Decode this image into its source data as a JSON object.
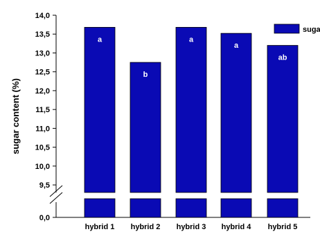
{
  "chart_data": {
    "type": "bar",
    "title": "",
    "xlabel": "",
    "ylabel": "sugar content (%)",
    "categories": [
      "hybrid 1",
      "hybrid 2",
      "hybrid 3",
      "hybrid 4",
      "hybrid 5"
    ],
    "series": [
      {
        "name": "sugar",
        "values": [
          13.68,
          12.75,
          13.68,
          13.52,
          13.2
        ],
        "labels": [
          "a",
          "b",
          "a",
          "a",
          "ab"
        ],
        "color": "#0a0ab4"
      }
    ],
    "ylim": [
      9.3,
      14.0
    ],
    "y_ticks": [
      "9,5",
      "10,0",
      "10,5",
      "11,0",
      "11,5",
      "12,0",
      "12,5",
      "13,0",
      "13,5",
      "14,0"
    ],
    "y_tick_values": [
      9.5,
      10.0,
      10.5,
      11.0,
      11.5,
      12.0,
      12.5,
      13.0,
      13.5,
      14.0
    ],
    "y_axis_break": true,
    "y_lower_tick": "0,0",
    "legend": {
      "position": "top-right",
      "entries": [
        "suga"
      ]
    },
    "grid": false
  }
}
